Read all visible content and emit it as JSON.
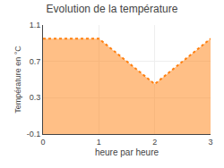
{
  "chart_data": {
    "type": "area",
    "title": "Evolution de la température",
    "xlabel": "heure par heure",
    "ylabel": "Température en °C",
    "x": [
      0,
      1,
      2,
      3
    ],
    "values": [
      0.95,
      0.95,
      0.45,
      0.95
    ],
    "xlim": [
      0,
      3
    ],
    "ylim": [
      -0.1,
      1.1
    ],
    "xticks": [
      0,
      1,
      2,
      3
    ],
    "yticks": [
      -0.1,
      0.3,
      0.7,
      1.1
    ],
    "line_style": "dotted",
    "grid": true
  }
}
